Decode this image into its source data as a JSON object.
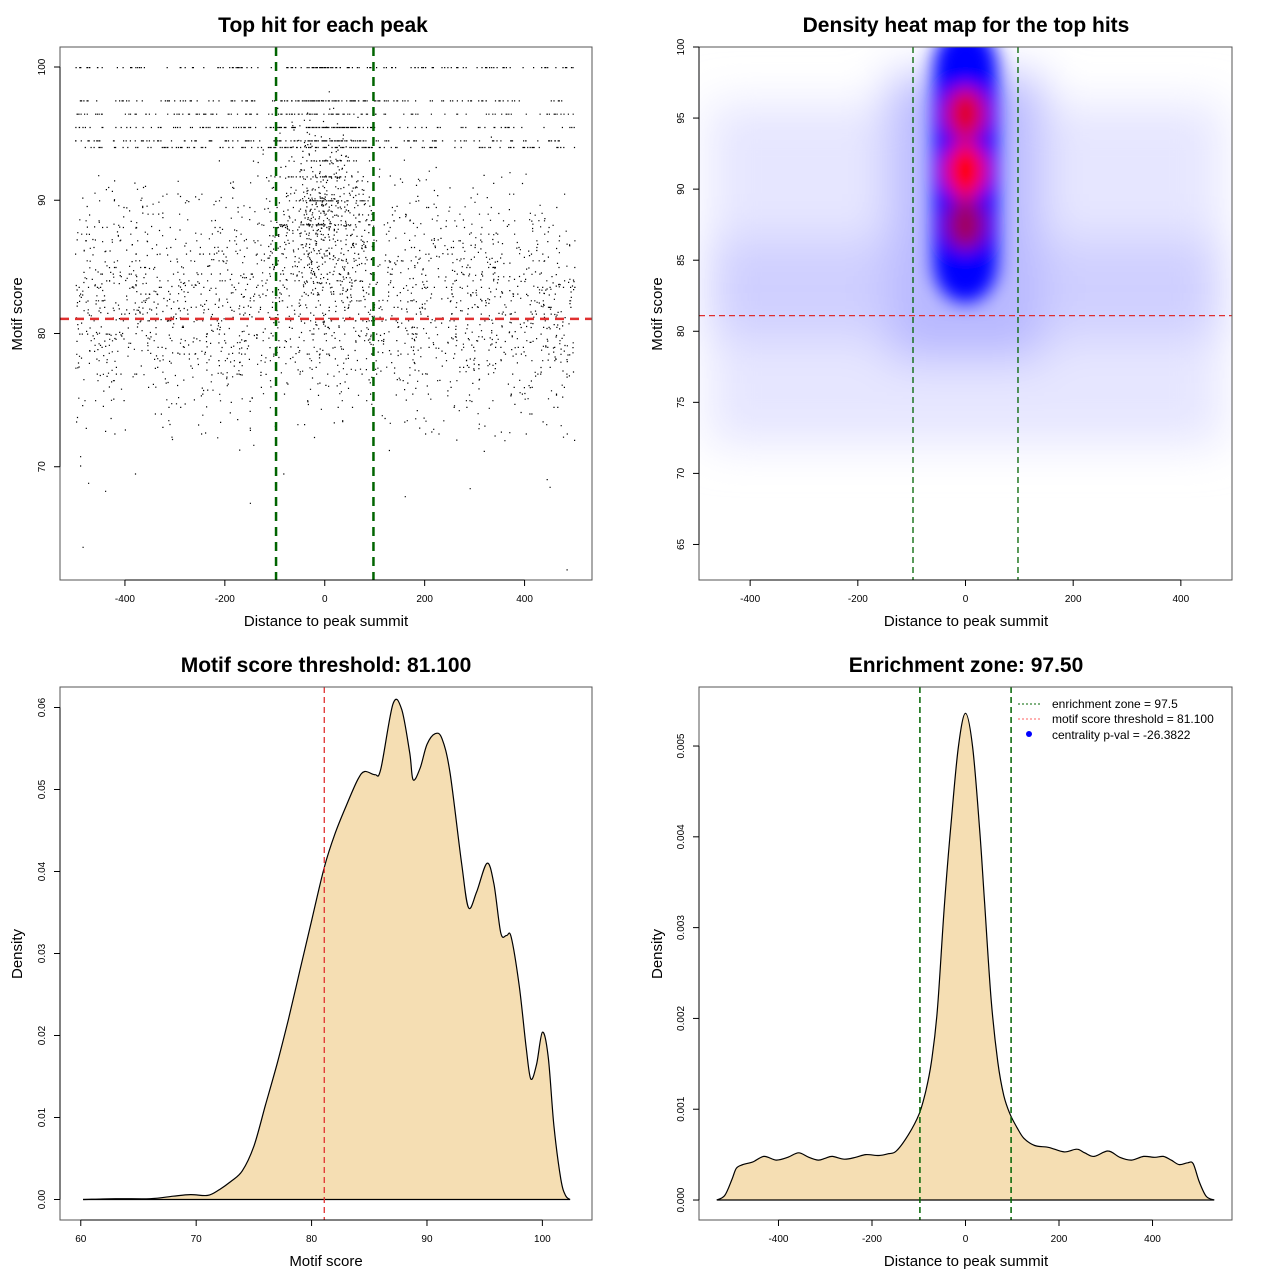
{
  "chart_data": [
    {
      "id": "scatter",
      "type": "scatter",
      "title": "Top hit for each peak",
      "xlabel": "Distance to peak summit",
      "ylabel": "Motif score",
      "xlim": [
        -530,
        535
      ],
      "ylim": [
        61.5,
        101.5
      ],
      "xticks": [
        -400,
        -200,
        0,
        200,
        400
      ],
      "yticks": [
        70,
        80,
        90,
        100
      ],
      "xtick_labels": [
        "-400",
        "-200",
        "0",
        "200",
        "400"
      ],
      "ytick_labels": [
        "70",
        "80",
        "90",
        "100"
      ],
      "vlines": [
        -97.5,
        97.5
      ],
      "hline": 81.1,
      "description": "Thousands of points; x uniformly spread over -500..500, y mostly 72-92, points strongly concentrated between -100 and 100 at scores 84-100, discrete score bands visible at 100, 97.5, 96.5, 95.5, 94.5, 93.0",
      "score_bands": [
        100,
        97.5,
        96.5,
        95.5,
        94.5,
        94.0,
        93.0,
        91.8,
        90.0,
        88.2
      ],
      "outliers": [
        {
          "x": -490,
          "y": 70.8
        },
        {
          "x": -490,
          "y": 70.1
        },
        {
          "x": -474,
          "y": 68.8
        },
        {
          "x": -485,
          "y": 64.0
        },
        {
          "x": -440,
          "y": 68.2
        },
        {
          "x": 484,
          "y": 62.3
        },
        {
          "x": 450,
          "y": 68.5
        },
        {
          "x": 160,
          "y": 67.8
        },
        {
          "x": -150,
          "y": 67.3
        },
        {
          "x": -380,
          "y": 69.5
        },
        {
          "x": 290,
          "y": 68.4
        }
      ]
    },
    {
      "id": "heatmap",
      "type": "heatmap",
      "title": "Density heat map for the top hits",
      "xlabel": "Distance to peak summit",
      "ylabel": "Motif score",
      "xlim": [
        -495,
        495
      ],
      "ylim": [
        62.5,
        100
      ],
      "xticks": [
        -400,
        -200,
        0,
        200,
        400
      ],
      "yticks": [
        65,
        70,
        75,
        80,
        85,
        90,
        95,
        100
      ],
      "xtick_labels": [
        "-400",
        "-200",
        "0",
        "200",
        "400"
      ],
      "ytick_labels": [
        "65",
        "70",
        "75",
        "80",
        "85",
        "90",
        "95",
        "100"
      ],
      "vlines": [
        -97.5,
        97.5
      ],
      "hline": 81.1,
      "colors": [
        "#ffffff",
        "#0000ff",
        "#ff0000"
      ],
      "hotspots": [
        {
          "x": 0,
          "y": 95.3,
          "intensity": 0.85
        },
        {
          "x": 0,
          "y": 91.3,
          "intensity": 1.0
        },
        {
          "x": 0,
          "y": 87.5,
          "intensity": 0.75
        },
        {
          "x": 0,
          "y": 99.0,
          "intensity": 0.45
        },
        {
          "x": 0,
          "y": 83.0,
          "intensity": 0.35
        }
      ],
      "background_band": {
        "y_from": 72,
        "y_to": 96,
        "peak_y": 82.5,
        "intensity": 0.12
      }
    },
    {
      "id": "score-density",
      "type": "area",
      "title": "Motif score threshold: 81.100",
      "xlabel": "Motif score",
      "ylabel": "Density",
      "xlim": [
        58.2,
        104.3
      ],
      "ylim": [
        -0.0025,
        0.0625
      ],
      "xticks": [
        60,
        70,
        80,
        90,
        100
      ],
      "yticks": [
        0,
        0.01,
        0.02,
        0.03,
        0.04,
        0.05,
        0.06
      ],
      "xtick_labels": [
        "60",
        "70",
        "80",
        "90",
        "100"
      ],
      "ytick_labels": [
        "0.00",
        "0.01",
        "0.02",
        "0.03",
        "0.04",
        "0.05",
        "0.06"
      ],
      "vline": 81.1,
      "fill": "#f5deb3",
      "x": [
        60.2,
        63,
        66,
        68,
        69.5,
        71,
        72,
        73,
        74,
        75,
        76,
        77,
        78,
        79,
        80,
        81.1,
        82,
        83,
        84,
        84.6,
        85.5,
        86,
        87.05,
        87.8,
        88.5,
        88.8,
        89.4,
        90,
        90.7,
        91.3,
        92,
        93,
        93.6,
        94.3,
        95.2,
        95.8,
        96.4,
        96.9,
        97.3,
        98,
        98.6,
        99,
        99.5,
        100,
        100.5,
        101,
        101.6,
        102,
        102.4
      ],
      "y": [
        0.0,
        0.0001,
        0.0001,
        0.0004,
        0.0006,
        0.0005,
        0.0012,
        0.0022,
        0.0035,
        0.0065,
        0.0115,
        0.0165,
        0.022,
        0.028,
        0.034,
        0.0405,
        0.0445,
        0.048,
        0.0512,
        0.0522,
        0.0518,
        0.0525,
        0.0604,
        0.0598,
        0.0545,
        0.0512,
        0.0526,
        0.0555,
        0.0568,
        0.0562,
        0.052,
        0.041,
        0.0356,
        0.0375,
        0.041,
        0.0385,
        0.0325,
        0.0322,
        0.032,
        0.026,
        0.0185,
        0.0147,
        0.0165,
        0.0204,
        0.0175,
        0.009,
        0.0025,
        0.0005,
        0.0
      ]
    },
    {
      "id": "enrichment",
      "type": "area",
      "title": "Enrichment zone: 97.50",
      "xlabel": "Distance to peak summit",
      "ylabel": "Density",
      "xlim": [
        -570,
        570
      ],
      "ylim": [
        -0.00022,
        0.00565
      ],
      "xticks": [
        -400,
        -200,
        0,
        200,
        400
      ],
      "yticks": [
        0,
        0.001,
        0.002,
        0.003,
        0.004,
        0.005
      ],
      "xtick_labels": [
        "-400",
        "-200",
        "0",
        "200",
        "400"
      ],
      "ytick_labels": [
        "0.000",
        "0.001",
        "0.002",
        "0.003",
        "0.004",
        "0.005"
      ],
      "vlines": [
        -97.5,
        97.5
      ],
      "fill": "#f5deb3",
      "x": [
        -532,
        -515,
        -500,
        -490,
        -476,
        -455,
        -431,
        -405,
        -380,
        -357,
        -335,
        -315,
        -300,
        -285,
        -259,
        -235,
        -213,
        -185,
        -165,
        -148,
        -122,
        -99,
        -85,
        -73,
        -60,
        -45,
        -30,
        -15,
        0,
        15,
        30,
        41,
        55,
        69,
        82,
        95,
        110,
        125,
        148,
        178,
        211,
        238,
        255,
        275,
        305,
        330,
        355,
        381,
        405,
        423,
        440,
        457,
        475,
        487,
        500,
        515,
        532
      ],
      "y": [
        0,
        5e-05,
        0.00022,
        0.00035,
        0.00039,
        0.00042,
        0.00048,
        0.00044,
        0.00047,
        0.00052,
        0.00047,
        0.00044,
        0.00046,
        0.00048,
        0.00045,
        0.00047,
        0.0005,
        0.00049,
        0.00051,
        0.00054,
        0.00072,
        0.00095,
        0.0012,
        0.00152,
        0.0021,
        0.00326,
        0.0042,
        0.005,
        0.00536,
        0.005,
        0.0041,
        0.00326,
        0.0022,
        0.00152,
        0.00115,
        0.00095,
        0.0008,
        0.00068,
        0.0006,
        0.00058,
        0.00053,
        0.00056,
        0.00052,
        0.00048,
        0.00054,
        0.00047,
        0.00044,
        0.00048,
        0.00047,
        0.00048,
        0.00044,
        0.00039,
        0.00041,
        0.0004,
        0.0002,
        4e-05,
        0
      ],
      "legend": {
        "placement": "top-right",
        "entries": [
          {
            "label": "enrichment zone = 97.5",
            "style": "dotted",
            "color": "#006400"
          },
          {
            "label": "motif score threshold = 81.100",
            "style": "dotted",
            "color": "#ff6060"
          },
          {
            "label": "centrality p-val = -26.3822",
            "style": "point",
            "color": "#0000ff"
          }
        ]
      }
    }
  ],
  "colors": {
    "threshold_line": "#e03030",
    "zone_line": "#006400",
    "density_fill": "#f5deb3",
    "axis": "#000000"
  }
}
